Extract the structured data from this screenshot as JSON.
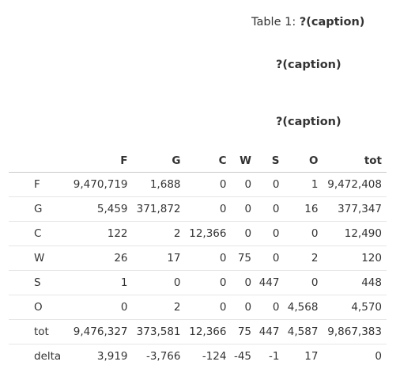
{
  "captions": {
    "table_prefix": "Table 1: ",
    "table_suffix": "?(caption)",
    "line2": "?(caption)",
    "line3": "?(caption)"
  },
  "table": {
    "corner_label": "",
    "columns": [
      "F",
      "G",
      "C",
      "W",
      "S",
      "O",
      "tot"
    ],
    "rows": [
      {
        "label": "F",
        "cells": [
          "9,470,719",
          "1,688",
          "0",
          "0",
          "0",
          "1",
          "9,472,408"
        ]
      },
      {
        "label": "G",
        "cells": [
          "5,459",
          "371,872",
          "0",
          "0",
          "0",
          "16",
          "377,347"
        ]
      },
      {
        "label": "C",
        "cells": [
          "122",
          "2",
          "12,366",
          "0",
          "0",
          "0",
          "12,490"
        ]
      },
      {
        "label": "W",
        "cells": [
          "26",
          "17",
          "0",
          "75",
          "0",
          "2",
          "120"
        ]
      },
      {
        "label": "S",
        "cells": [
          "1",
          "0",
          "0",
          "0",
          "447",
          "0",
          "448"
        ]
      },
      {
        "label": "O",
        "cells": [
          "0",
          "2",
          "0",
          "0",
          "0",
          "4,568",
          "4,570"
        ]
      },
      {
        "label": "tot",
        "cells": [
          "9,476,327",
          "373,581",
          "12,366",
          "75",
          "447",
          "4,587",
          "9,867,383"
        ]
      },
      {
        "label": "delta",
        "cells": [
          "3,919",
          "-3,766",
          "-124",
          "-45",
          "-1",
          "17",
          "0"
        ]
      }
    ]
  }
}
